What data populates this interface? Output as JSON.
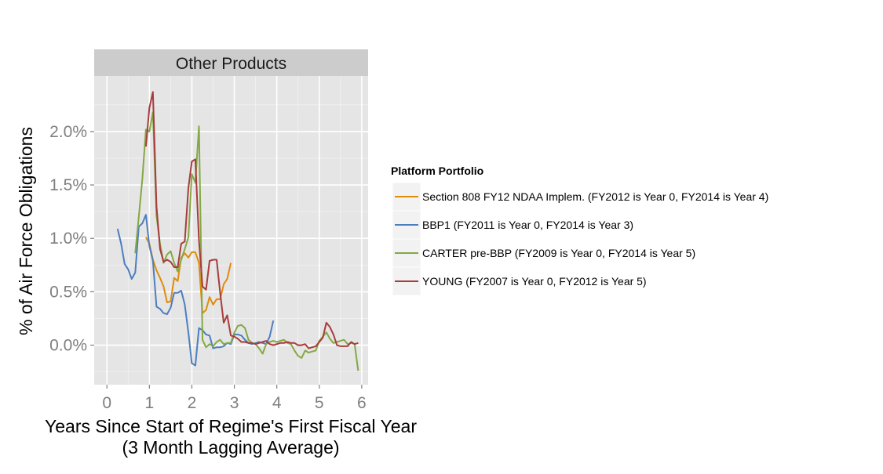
{
  "chart_data": {
    "type": "line",
    "facet_label": "Other Products",
    "xlabel_line1": "Years Since Start of Regime's First Fiscal Year",
    "xlabel_line2": "(3 Month Lagging Average)",
    "ylabel": "% of Air Force Obligations",
    "xlim": [
      -0.3,
      6.15
    ],
    "ylim": [
      -0.0037,
      0.0252
    ],
    "x_ticks": [
      0,
      1,
      2,
      3,
      4,
      5,
      6
    ],
    "x_tick_labels": [
      "0",
      "1",
      "2",
      "3",
      "4",
      "5",
      "6"
    ],
    "y_ticks": [
      0,
      0.005,
      0.01,
      0.015,
      0.02
    ],
    "y_tick_labels": [
      "0.0%",
      "0.5%",
      "1.0%",
      "1.5%",
      "2.0%"
    ],
    "grid": true,
    "legend": {
      "title": "Platform Portfolio",
      "position": "right"
    },
    "series": [
      {
        "name": "Section 808 FY12 NDAA Implem. (FY2012 is Year 0, FY2014 is Year 4)",
        "color": "#E08C0B",
        "x": [
          0.917,
          1.0,
          1.083,
          1.167,
          1.25,
          1.333,
          1.417,
          1.5,
          1.583,
          1.667,
          1.75,
          1.833,
          1.917,
          2.0,
          2.083,
          2.167,
          2.25,
          2.333,
          2.417,
          2.5,
          2.583,
          2.667,
          2.75,
          2.833,
          2.917
        ],
        "y": [
          0.0101,
          0.0095,
          0.008,
          0.007,
          0.0063,
          0.0055,
          0.004,
          0.0041,
          0.0063,
          0.006,
          0.0082,
          0.0086,
          0.0082,
          0.0087,
          0.0087,
          0.0077,
          0.003,
          0.0033,
          0.0045,
          0.0038,
          0.0043,
          0.0043,
          0.0057,
          0.0062,
          0.0077
        ]
      },
      {
        "name": "BBP1 (FY2011 is Year 0, FY2014 is Year 3)",
        "color": "#4C7EBF",
        "x": [
          0.25,
          0.333,
          0.417,
          0.5,
          0.583,
          0.667,
          0.75,
          0.833,
          0.917,
          1.0,
          1.083,
          1.167,
          1.25,
          1.333,
          1.417,
          1.5,
          1.583,
          1.667,
          1.75,
          1.833,
          1.917,
          2.0,
          2.083,
          2.167,
          2.25,
          2.333,
          2.417,
          2.5,
          2.583,
          2.667,
          2.75,
          2.833,
          2.917,
          3.0,
          3.083,
          3.167,
          3.25,
          3.333,
          3.417,
          3.5,
          3.583,
          3.667,
          3.75,
          3.833,
          3.917
        ],
        "y": [
          0.0109,
          0.0095,
          0.0076,
          0.0071,
          0.0062,
          0.0068,
          0.0111,
          0.0114,
          0.0122,
          0.0093,
          0.0079,
          0.0036,
          0.0034,
          0.003,
          0.0029,
          0.0035,
          0.0049,
          0.0049,
          0.0051,
          0.0038,
          0.0012,
          -0.0017,
          -0.0019,
          0.0016,
          0.0014,
          0.001,
          0.0009,
          -0.0003,
          -0.0002,
          -0.0002,
          -0.0001,
          0.0002,
          0.0001,
          0.001,
          0.001,
          0.0009,
          0.0005,
          0.0002,
          0.0001,
          0.0002,
          0.0003,
          0.0002,
          0.0001,
          0.0008,
          0.0023
        ]
      },
      {
        "name": "CARTER pre-BBP (FY2009 is Year 0, FY2014 is Year 5)",
        "color": "#84A843",
        "x": [
          0.667,
          0.75,
          0.833,
          0.917,
          1.0,
          1.083,
          1.167,
          1.25,
          1.333,
          1.417,
          1.5,
          1.583,
          1.667,
          1.75,
          1.833,
          1.917,
          2.0,
          2.083,
          2.167,
          2.25,
          2.333,
          2.417,
          2.5,
          2.583,
          2.667,
          2.75,
          2.833,
          2.917,
          3.0,
          3.083,
          3.167,
          3.25,
          3.333,
          3.417,
          3.5,
          3.583,
          3.667,
          3.75,
          3.833,
          3.917,
          4.0,
          4.083,
          4.167,
          4.25,
          4.333,
          4.417,
          4.5,
          4.583,
          4.667,
          4.75,
          4.833,
          4.917,
          5.0,
          5.083,
          5.167,
          5.25,
          5.333,
          5.417,
          5.5,
          5.583,
          5.667,
          5.75,
          5.833,
          5.917
        ],
        "y": [
          0.0086,
          0.012,
          0.0155,
          0.0202,
          0.02,
          0.0218,
          0.0121,
          0.0095,
          0.0077,
          0.0085,
          0.0088,
          0.0077,
          0.0069,
          0.008,
          0.009,
          0.0101,
          0.016,
          0.0152,
          0.0205,
          0.0005,
          -0.0002,
          0.0001,
          -0.0001,
          0.0003,
          0.0005,
          0.0001,
          0.0002,
          0.0002,
          0.0012,
          0.0018,
          0.0019,
          0.0016,
          0.0005,
          0.0002,
          0.0001,
          -0.0003,
          -0.0008,
          0.0001,
          0.0003,
          0.0004,
          0.0003,
          0.0004,
          0.0005,
          0.0002,
          0.0001,
          -0.0005,
          -0.001,
          -0.0012,
          -0.0005,
          -0.0007,
          -0.0006,
          -0.0005,
          0.0004,
          0.0008,
          0.0012,
          0.0006,
          0.0002,
          0.0003,
          0.0004,
          0.0005,
          0.0001,
          0.0002,
          0.0001,
          -0.0024
        ]
      },
      {
        "name": "YOUNG (FY2007 is Year 0, FY2012 is Year 5)",
        "color": "#A83C3C",
        "x": [
          0.917,
          1.0,
          1.083,
          1.167,
          1.25,
          1.333,
          1.417,
          1.5,
          1.583,
          1.667,
          1.75,
          1.833,
          1.917,
          2.0,
          2.083,
          2.167,
          2.25,
          2.333,
          2.417,
          2.5,
          2.583,
          2.667,
          2.75,
          2.833,
          2.917,
          3.0,
          3.083,
          3.167,
          3.25,
          3.333,
          3.417,
          3.5,
          3.583,
          3.667,
          3.75,
          3.833,
          3.917,
          4.0,
          4.083,
          4.167,
          4.25,
          4.333,
          4.417,
          4.5,
          4.583,
          4.667,
          4.75,
          4.833,
          4.917,
          5.0,
          5.083,
          5.167,
          5.25,
          5.333,
          5.417,
          5.5,
          5.583,
          5.667,
          5.75,
          5.833,
          5.917
        ],
        "y": [
          0.0186,
          0.0222,
          0.0237,
          0.013,
          0.009,
          0.0078,
          0.008,
          0.0078,
          0.0073,
          0.0073,
          0.0095,
          0.0097,
          0.0147,
          0.0172,
          0.0174,
          0.0098,
          0.0055,
          0.0052,
          0.0079,
          0.008,
          0.008,
          0.0049,
          0.0021,
          0.0028,
          0.0009,
          0.0008,
          0.0006,
          0.0003,
          0.0003,
          0.0002,
          0.0002,
          0.0001,
          0.0002,
          0.0003,
          0.0004,
          0.0001,
          0.0,
          0.0001,
          0.0002,
          0.0002,
          0.0003,
          0.0002,
          0.0002,
          0.0,
          0.0,
          0.0001,
          -0.0003,
          -0.0002,
          -0.0001,
          0.0003,
          0.0007,
          0.0021,
          0.0017,
          0.001,
          0.0,
          -0.0001,
          -0.0001,
          -0.0001,
          0.0003,
          0.0001,
          0.0002
        ]
      }
    ]
  }
}
